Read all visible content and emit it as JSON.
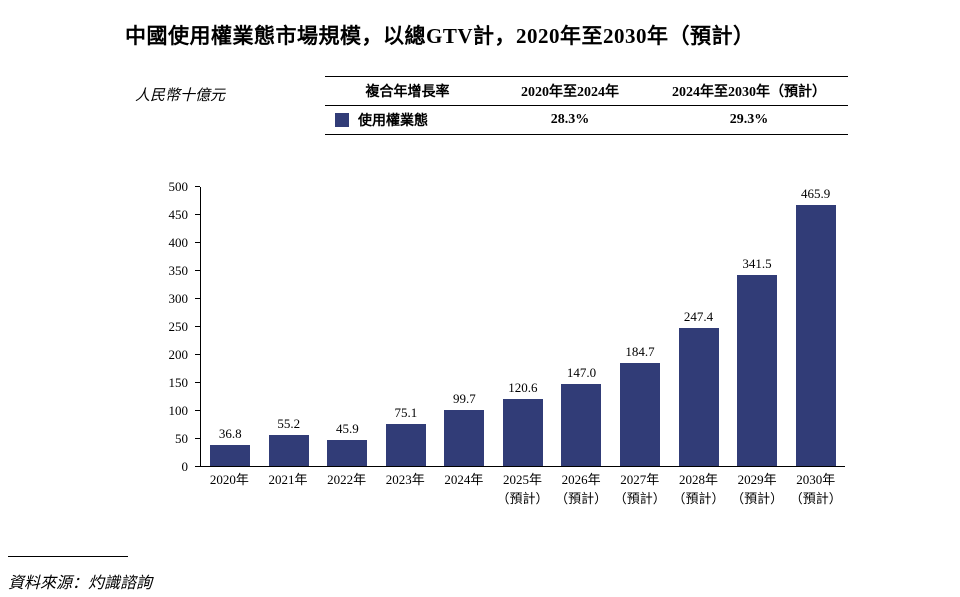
{
  "title": "中國使用權業態市場規模，以總GTV計，2020年至2030年（預計）",
  "unit_label": "人民幣十億元",
  "cagr_table": {
    "header_cagr": "複合年增長率",
    "header_period_1": "2020年至2024年",
    "header_period_2": "2024年至2030年（預計）",
    "row_label": "使用權業態",
    "cagr_2020_2024": "28.3%",
    "cagr_2024_2030": "29.3%"
  },
  "source": "資料來源：灼識諮詢",
  "colors": {
    "bar": "#313c77",
    "text": "#000000",
    "background": "#ffffff"
  },
  "chart_data": {
    "type": "bar",
    "title": "中國使用權業態市場規模，以總GTV計，2020年至2030年（預計）",
    "ylabel": "人民幣十億元",
    "categories": [
      "2020年",
      "2021年",
      "2022年",
      "2023年",
      "2024年",
      "2025年\n（預計）",
      "2026年\n（預計）",
      "2027年\n（預計）",
      "2028年\n（預計）",
      "2029年\n（預計）",
      "2030年\n（預計）"
    ],
    "series": [
      {
        "name": "使用權業態",
        "values": [
          36.8,
          55.2,
          45.9,
          75.1,
          99.7,
          120.6,
          147.0,
          184.7,
          247.4,
          341.5,
          465.9
        ],
        "labels": [
          "36.8",
          "55.2",
          "45.9",
          "75.1",
          "99.7",
          "120.6",
          "147.0",
          "184.7",
          "247.4",
          "341.5",
          "465.9"
        ],
        "cagr_2020_2024": "28.3%",
        "cagr_2024_2030": "29.3%"
      }
    ],
    "ylim": [
      0,
      500
    ],
    "yticks": [
      0,
      50,
      100,
      150,
      200,
      250,
      300,
      350,
      400,
      450,
      500
    ],
    "grid": false,
    "legend_position": "top"
  }
}
